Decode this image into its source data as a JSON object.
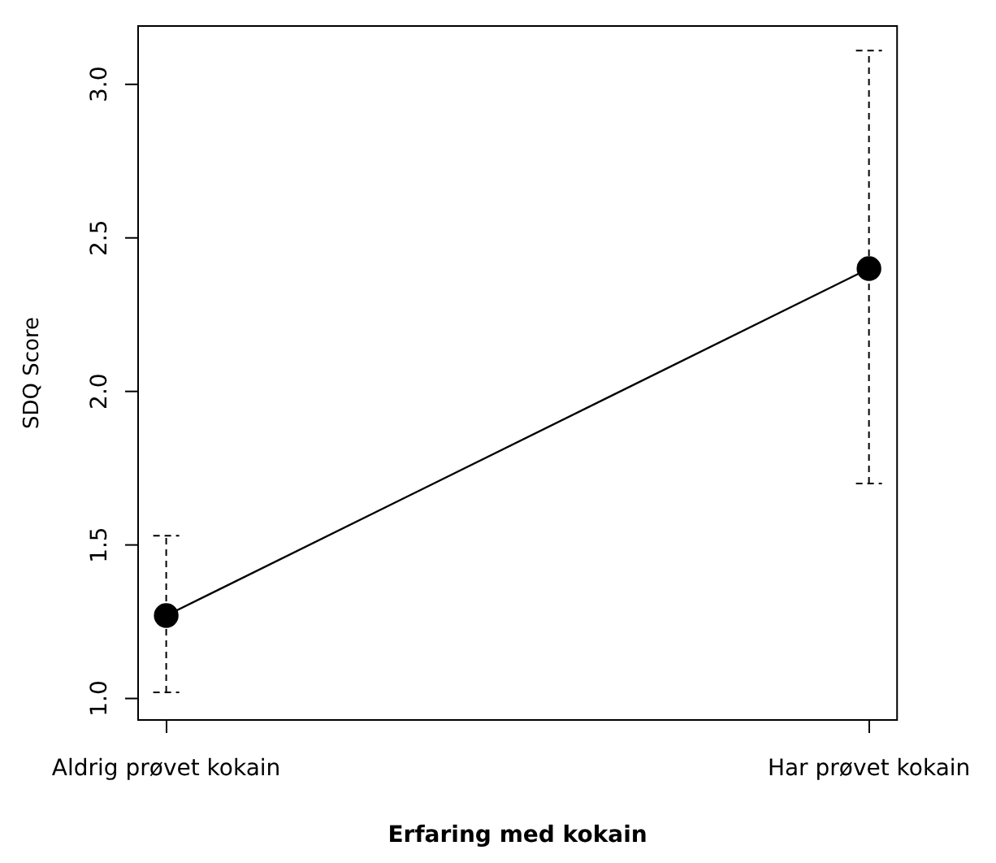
{
  "chart_data": {
    "type": "line",
    "xlabel": "Erfaring med kokain",
    "ylabel": "SDQ Score",
    "categories": [
      "Aldrig prøvet kokain",
      "Har prøvet kokain"
    ],
    "series": [
      {
        "color": "#000000",
        "values": [
          1.27,
          2.4
        ],
        "errors": [
          [
            1.02,
            1.53
          ],
          [
            1.7,
            3.11
          ]
        ]
      }
    ],
    "ylim": [
      0.93,
      3.19
    ],
    "yticks": [
      {
        "value": 1,
        "label": "1.0"
      },
      1.5,
      {
        "value": 2,
        "label": "2.0"
      },
      2.5,
      {
        "value": 3,
        "label": "3.0"
      }
    ],
    "marker": "circle",
    "line_style": "solid"
  }
}
